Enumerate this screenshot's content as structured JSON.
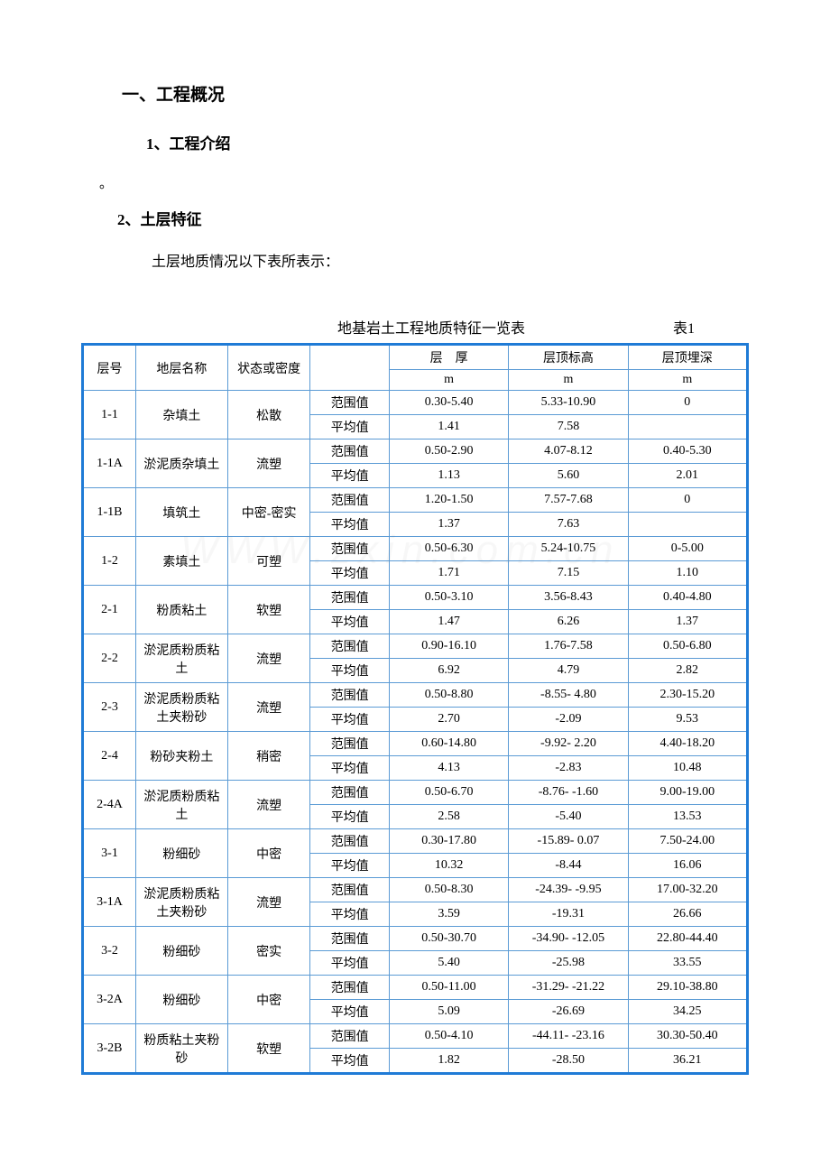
{
  "headings": {
    "h1": "一、工程概况",
    "h2a": "1、工程介绍",
    "dot": "。",
    "h2b": "2、土层特征",
    "body": "土层地质情况以下表所表示：",
    "tableTitle": "地基岩土工程地质特征一览表",
    "tableNum": "表1"
  },
  "tableHead": {
    "layerNo": "层号",
    "layerName": "地层名称",
    "state": "状态或密度",
    "thickness": "层　厚",
    "topElev": "层顶标高",
    "topDepth": "层顶埋深",
    "unit": "m",
    "range": "范围值",
    "avg": "平均值"
  },
  "rows": [
    {
      "no": "1-1",
      "name": "杂填土",
      "state": "松散",
      "r": [
        "0.30-5.40",
        "5.33-10.90",
        "0"
      ],
      "a": [
        "1.41",
        "7.58",
        ""
      ]
    },
    {
      "no": "1-1A",
      "name": "淤泥质杂填土",
      "state": "流塑",
      "r": [
        "0.50-2.90",
        "4.07-8.12",
        "0.40-5.30"
      ],
      "a": [
        "1.13",
        "5.60",
        "2.01"
      ]
    },
    {
      "no": "1-1B",
      "name": "填筑土",
      "state": "中密-密实",
      "r": [
        "1.20-1.50",
        "7.57-7.68",
        "0"
      ],
      "a": [
        "1.37",
        "7.63",
        ""
      ]
    },
    {
      "no": "1-2",
      "name": "素填土",
      "state": "可塑",
      "r": [
        "0.50-6.30",
        "5.24-10.75",
        "0-5.00"
      ],
      "a": [
        "1.71",
        "7.15",
        "1.10"
      ]
    },
    {
      "no": "2-1",
      "name": "粉质粘土",
      "state": "软塑",
      "r": [
        "0.50-3.10",
        "3.56-8.43",
        "0.40-4.80"
      ],
      "a": [
        "1.47",
        "6.26",
        "1.37"
      ]
    },
    {
      "no": "2-2",
      "name": "淤泥质粉质粘土",
      "state": "流塑",
      "r": [
        "0.90-16.10",
        "1.76-7.58",
        "0.50-6.80"
      ],
      "a": [
        "6.92",
        "4.79",
        "2.82"
      ]
    },
    {
      "no": "2-3",
      "name": "淤泥质粉质粘土夹粉砂",
      "state": "流塑",
      "r": [
        "0.50-8.80",
        "-8.55- 4.80",
        "2.30-15.20"
      ],
      "a": [
        "2.70",
        "-2.09",
        "9.53"
      ]
    },
    {
      "no": "2-4",
      "name": "粉砂夹粉土",
      "state": "稍密",
      "r": [
        "0.60-14.80",
        "-9.92- 2.20",
        "4.40-18.20"
      ],
      "a": [
        "4.13",
        "-2.83",
        "10.48"
      ]
    },
    {
      "no": "2-4A",
      "name": "淤泥质粉质粘土",
      "state": "流塑",
      "r": [
        "0.50-6.70",
        "-8.76- -1.60",
        "9.00-19.00"
      ],
      "a": [
        "2.58",
        "-5.40",
        "13.53"
      ]
    },
    {
      "no": "3-1",
      "name": "粉细砂",
      "state": "中密",
      "r": [
        "0.30-17.80",
        "-15.89- 0.07",
        "7.50-24.00"
      ],
      "a": [
        "10.32",
        "-8.44",
        "16.06"
      ]
    },
    {
      "no": "3-1A",
      "name": "淤泥质粉质粘土夹粉砂",
      "state": "流塑",
      "r": [
        "0.50-8.30",
        "-24.39- -9.95",
        "17.00-32.20"
      ],
      "a": [
        "3.59",
        "-19.31",
        "26.66"
      ]
    },
    {
      "no": "3-2",
      "name": "粉细砂",
      "state": "密实",
      "r": [
        "0.50-30.70",
        "-34.90- -12.05",
        "22.80-44.40"
      ],
      "a": [
        "5.40",
        "-25.98",
        "33.55"
      ]
    },
    {
      "no": "3-2A",
      "name": "粉细砂",
      "state": "中密",
      "r": [
        "0.50-11.00",
        "-31.29- -21.22",
        "29.10-38.80"
      ],
      "a": [
        "5.09",
        "-26.69",
        "34.25"
      ]
    },
    {
      "no": "3-2B",
      "name": "粉质粘土夹粉砂",
      "state": "软塑",
      "r": [
        "0.50-4.10",
        "-44.11- -23.16",
        "30.30-50.40"
      ],
      "a": [
        "1.82",
        "-28.50",
        "36.21"
      ]
    }
  ],
  "style": {
    "borderColor": "#5b9bd5",
    "outerBorderColor": "#1f7bd6",
    "fontFamily": "SimSun",
    "headingFontSize": 19,
    "subheadingFontSize": 17,
    "bodyFontSize": 16,
    "tableFontSize": 14,
    "background": "#ffffff"
  },
  "watermark": "WWW.zxin.com.cn"
}
